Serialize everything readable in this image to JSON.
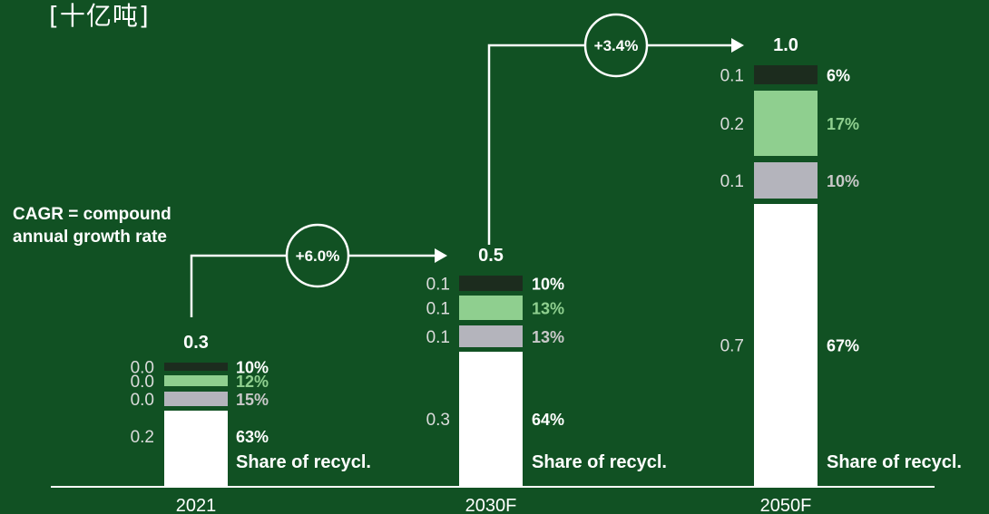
{
  "unit_label": "[十亿吨]",
  "cagr_note": "CAGR = compound annual growth rate",
  "colors": {
    "background": "#115123",
    "dark_segment": "#1c2c1e",
    "light_green": "#8fcf8f",
    "grey": "#b4b4bc",
    "white": "#ffffff",
    "value_text": "#dcdcdc",
    "pct_grey": "#c8c8c8"
  },
  "chart_data": {
    "type": "bar",
    "stacked": true,
    "categories": [
      "2021",
      "2030F",
      "2050F"
    ],
    "totals": [
      "0.3",
      "0.5",
      "1.0"
    ],
    "series": [
      {
        "color": "white",
        "values": [
          0.2,
          0.3,
          0.7
        ],
        "value_labels": [
          "0.2",
          "0.3",
          "0.7"
        ],
        "share_labels": [
          "63%",
          "64%",
          "67%"
        ]
      },
      {
        "color": "grey",
        "values": [
          0.0,
          0.1,
          0.1
        ],
        "value_labels": [
          "0.0",
          "0.1",
          "0.1"
        ],
        "share_labels": [
          "15%",
          "13%",
          "10%"
        ]
      },
      {
        "color": "light_green",
        "values": [
          0.0,
          0.1,
          0.2
        ],
        "value_labels": [
          "0.0",
          "0.1",
          "0.2"
        ],
        "share_labels": [
          "12%",
          "13%",
          "17%"
        ]
      },
      {
        "color": "dark_segment",
        "values": [
          0.0,
          0.1,
          0.1
        ],
        "value_labels": [
          "0.0",
          "0.1",
          "0.1"
        ],
        "share_labels": [
          "10%",
          "10%",
          "6%"
        ]
      }
    ],
    "share_caption": "Share of recycl.",
    "growth": [
      {
        "from": "2021",
        "to": "2030F",
        "label": "+6.0%"
      },
      {
        "from": "2030F",
        "to": "2050F",
        "label": "+3.4%"
      }
    ]
  }
}
